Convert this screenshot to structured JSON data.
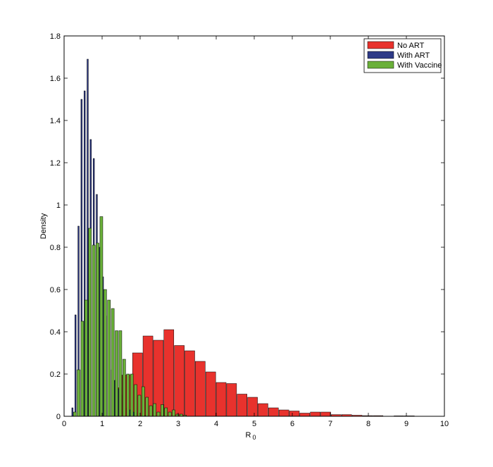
{
  "chart_data": {
    "type": "bar",
    "xlabel": "R",
    "xlabel_sub": "0",
    "ylabel": "Density",
    "xlim": [
      0,
      10
    ],
    "ylim": [
      0,
      1.8
    ],
    "xticks": [
      "0",
      "1",
      "2",
      "3",
      "4",
      "5",
      "6",
      "7",
      "8",
      "9",
      "10"
    ],
    "yticks": [
      "0",
      "0.2",
      "0.4",
      "0.6",
      "0.8",
      "1",
      "1.2",
      "1.4",
      "1.6",
      "1.8"
    ],
    "legend_position": "top-right",
    "series": [
      {
        "name": "No ART",
        "color": "#e8322d",
        "bar_width": 0.26,
        "x": [
          1.38,
          1.655,
          1.93,
          2.205,
          2.48,
          2.755,
          3.03,
          3.305,
          3.58,
          3.855,
          4.13,
          4.405,
          4.68,
          4.955,
          5.23,
          5.505,
          5.78,
          6.055,
          6.33,
          6.605,
          6.88,
          7.155,
          7.43,
          7.705,
          7.98,
          8.255,
          8.53,
          8.805,
          9.08
        ],
        "values": [
          0.135,
          0.195,
          0.3,
          0.38,
          0.36,
          0.41,
          0.335,
          0.31,
          0.26,
          0.21,
          0.16,
          0.155,
          0.105,
          0.09,
          0.06,
          0.04,
          0.03,
          0.025,
          0.015,
          0.02,
          0.02,
          0.008,
          0.008,
          0.005,
          0.003,
          0.003,
          0.0,
          0.002,
          0.002
        ]
      },
      {
        "name": "With ART",
        "color": "#2e3a87",
        "bar_width": 0.035,
        "x": [
          0.22,
          0.3,
          0.38,
          0.46,
          0.54,
          0.62,
          0.7,
          0.78,
          0.86,
          0.94,
          1.02,
          1.1,
          1.18,
          1.26,
          1.34,
          1.42,
          1.5,
          1.58,
          1.66,
          1.74,
          1.82,
          1.9,
          1.98,
          2.06,
          2.14
        ],
        "values": [
          0.04,
          0.48,
          0.9,
          1.5,
          1.54,
          1.69,
          1.31,
          1.22,
          1.05,
          0.8,
          0.66,
          0.475,
          0.34,
          0.22,
          0.17,
          0.13,
          0.1,
          0.06,
          0.04,
          0.03,
          0.02,
          0.015,
          0.01,
          0.005,
          0.003
        ]
      },
      {
        "name": "With Vaccine",
        "color": "#6ab039",
        "bar_width": 0.075,
        "x": [
          0.28,
          0.38,
          0.48,
          0.58,
          0.68,
          0.78,
          0.88,
          0.98,
          1.08,
          1.18,
          1.28,
          1.38,
          1.48,
          1.58,
          1.68,
          1.78,
          1.88,
          1.98,
          2.08,
          2.18,
          2.28,
          2.38,
          2.48,
          2.58,
          2.68,
          2.78,
          2.88,
          2.98,
          3.08,
          3.18
        ],
        "values": [
          0.02,
          0.22,
          0.45,
          0.55,
          0.89,
          0.81,
          0.82,
          0.945,
          0.6,
          0.55,
          0.51,
          0.405,
          0.405,
          0.27,
          0.2,
          0.2,
          0.15,
          0.1,
          0.14,
          0.09,
          0.05,
          0.06,
          0.02,
          0.055,
          0.04,
          0.02,
          0.03,
          0.01,
          0.01,
          0.005
        ]
      }
    ]
  }
}
